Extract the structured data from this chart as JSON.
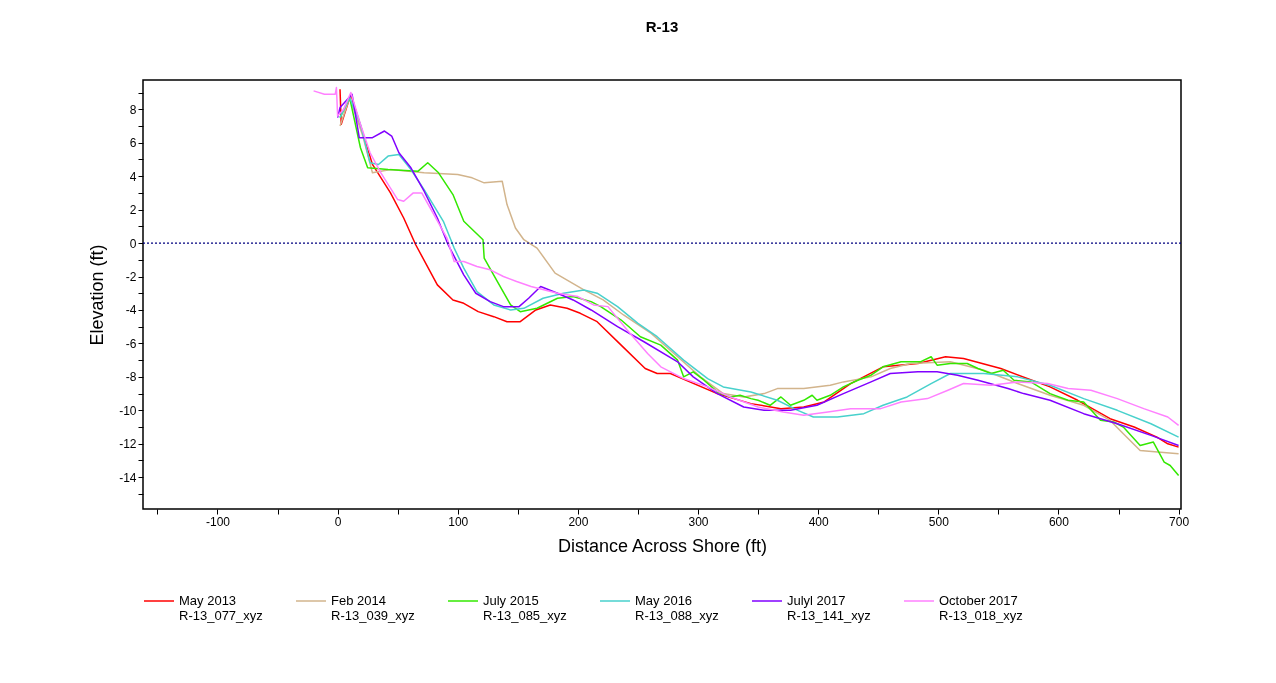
{
  "chart_data": {
    "type": "line",
    "title": "R-13",
    "xlabel": "Distance Across Shore (ft)",
    "ylabel": "Elevation (ft)",
    "xlim": [
      -162,
      702
    ],
    "ylim": [
      -15.9,
      9.75
    ],
    "xticks": [
      {
        "value": -150,
        "label": null
      },
      -100,
      {
        "value": -50,
        "label": null
      },
      0,
      {
        "value": 50,
        "label": null
      },
      100,
      {
        "value": 150,
        "label": null
      },
      200,
      {
        "value": 250,
        "label": null
      },
      300,
      {
        "value": 350,
        "label": null
      },
      400,
      {
        "value": 450,
        "label": null
      },
      500,
      {
        "value": 550,
        "label": null
      },
      600,
      {
        "value": 650,
        "label": null
      },
      700
    ],
    "yticks": [
      {
        "value": -15,
        "label": null
      },
      -14,
      {
        "value": -13,
        "label": null
      },
      -12,
      {
        "value": -11,
        "label": null
      },
      -10,
      {
        "value": -9,
        "label": null
      },
      -8,
      {
        "value": -7,
        "label": null
      },
      -6,
      {
        "value": -5,
        "label": null
      },
      -4,
      {
        "value": -3,
        "label": null
      },
      -2,
      {
        "value": -1,
        "label": null
      },
      0,
      {
        "value": 1,
        "label": null
      },
      2,
      {
        "value": 3,
        "label": null
      },
      4,
      {
        "value": 5,
        "label": null
      },
      6,
      {
        "value": 7,
        "label": null
      },
      8,
      {
        "value": 9,
        "label": null
      }
    ],
    "grid": false,
    "legend": "bottom",
    "marker": "none",
    "line_style": "solid",
    "ref_lines": [
      {
        "axis": "y",
        "value": 0,
        "color": "#000080",
        "line_style": "dotted"
      }
    ],
    "series": [
      {
        "name": "May 2013\nR-13_077_xyz",
        "color": "#ff0000",
        "x": [
          2,
          3,
          11,
          29,
          44,
          55,
          65,
          83,
          96,
          105,
          117,
          130,
          141,
          152,
          165,
          177,
          191,
          202,
          216,
          236,
          256,
          266,
          277,
          316,
          344,
          369,
          388,
          405,
          427,
          454,
          483,
          506,
          521,
          552,
          574,
          593,
          616,
          643,
          663,
          682,
          691,
          700
        ],
        "values": [
          9.2,
          7.1,
          8.9,
          4.7,
          3.0,
          1.5,
          -0.1,
          -2.5,
          -3.4,
          -3.6,
          -4.1,
          -4.4,
          -4.7,
          -4.7,
          -4.0,
          -3.7,
          -3.9,
          -4.2,
          -4.7,
          -6.1,
          -7.5,
          -7.8,
          -7.8,
          -9.0,
          -9.6,
          -9.9,
          -9.8,
          -9.5,
          -8.4,
          -7.4,
          -7.2,
          -6.8,
          -6.9,
          -7.5,
          -8.1,
          -8.6,
          -9.4,
          -10.5,
          -11.0,
          -11.6,
          -12.0,
          -12.2
        ]
      },
      {
        "name": "Feb 2014\nR-13_039_xyz",
        "color": "#d2b48c",
        "x": [
          2,
          10,
          21,
          29,
          44,
          72,
          100,
          112,
          122,
          137,
          141,
          148,
          155,
          166,
          181,
          205,
          221,
          238,
          261,
          283,
          302,
          321,
          338,
          355,
          366,
          388,
          410,
          421,
          444,
          460,
          477,
          510,
          538,
          566,
          593,
          621,
          643,
          654,
          668,
          685,
          700
        ],
        "values": [
          7.0,
          8.7,
          6.4,
          4.2,
          4.4,
          4.2,
          4.1,
          3.9,
          3.6,
          3.7,
          2.3,
          0.9,
          0.2,
          -0.3,
          -1.8,
          -2.8,
          -3.4,
          -4.3,
          -5.4,
          -6.8,
          -8.0,
          -9.0,
          -9.2,
          -9.0,
          -8.7,
          -8.7,
          -8.5,
          -8.3,
          -8.0,
          -7.5,
          -7.2,
          -7.1,
          -7.6,
          -8.4,
          -9.1,
          -9.7,
          -10.6,
          -11.4,
          -12.4,
          -12.5,
          -12.6
        ]
      },
      {
        "name": "July 2015\nR-13_085_xyz",
        "color": "#33e800",
        "x": [
          2,
          10,
          19,
          25,
          42,
          67,
          75,
          84,
          96,
          105,
          121,
          122,
          133,
          144,
          152,
          166,
          183,
          196,
          211,
          219,
          236,
          252,
          269,
          283,
          288,
          296,
          305,
          316,
          327,
          335,
          344,
          350,
          360,
          369,
          377,
          388,
          395,
          399,
          410,
          421,
          433,
          444,
          454,
          469,
          485,
          494,
          499,
          510,
          524,
          533,
          544,
          554,
          563,
          577,
          593,
          608,
          621,
          635,
          646,
          654,
          668,
          679,
          688,
          693,
          700
        ],
        "values": [
          7.5,
          8.7,
          5.7,
          4.5,
          4.4,
          4.3,
          4.8,
          4.2,
          2.9,
          1.3,
          0.2,
          -0.9,
          -2.3,
          -3.7,
          -4.1,
          -3.9,
          -3.3,
          -3.2,
          -3.5,
          -3.8,
          -4.6,
          -5.6,
          -6.1,
          -7.0,
          -8.0,
          -7.7,
          -8.2,
          -8.9,
          -9.2,
          -9.1,
          -9.3,
          -9.4,
          -9.7,
          -9.2,
          -9.7,
          -9.4,
          -9.1,
          -9.4,
          -9.1,
          -8.6,
          -8.2,
          -7.9,
          -7.4,
          -7.1,
          -7.1,
          -6.8,
          -7.3,
          -7.2,
          -7.2,
          -7.5,
          -7.8,
          -7.6,
          -8.2,
          -8.3,
          -9.0,
          -9.4,
          -9.5,
          -10.6,
          -10.7,
          -11.0,
          -12.1,
          -11.9,
          -13.1,
          -13.3,
          -13.9
        ]
      },
      {
        "name": "May 2016\nR-13_088_xyz",
        "color": "#48d1cc",
        "x": [
          2,
          10,
          19,
          27,
          34,
          42,
          51,
          61,
          72,
          88,
          97,
          105,
          116,
          130,
          144,
          155,
          171,
          188,
          205,
          216,
          233,
          250,
          266,
          288,
          308,
          321,
          344,
          366,
          383,
          396,
          416,
          438,
          454,
          474,
          494,
          510,
          538,
          566,
          593,
          621,
          649,
          677,
          700
        ],
        "values": [
          7.5,
          8.7,
          7.1,
          4.8,
          4.7,
          5.2,
          5.3,
          4.4,
          3.2,
          1.3,
          -0.3,
          -1.5,
          -2.9,
          -3.7,
          -4.0,
          -3.9,
          -3.3,
          -3.0,
          -2.8,
          -3.0,
          -3.8,
          -4.8,
          -5.6,
          -7.0,
          -8.1,
          -8.6,
          -8.9,
          -9.4,
          -10.0,
          -10.4,
          -10.4,
          -10.2,
          -9.7,
          -9.2,
          -8.4,
          -7.8,
          -7.8,
          -8.0,
          -8.5,
          -9.3,
          -10.0,
          -10.8,
          -11.6
        ]
      },
      {
        "name": "Julyl 2017\nR-13_141_xyz",
        "color": "#8000ff",
        "x": [
          0,
          2,
          12,
          18,
          29,
          39,
          45,
          51,
          61,
          72,
          83,
          92,
          105,
          115,
          127,
          138,
          151,
          159,
          169,
          183,
          196,
          211,
          233,
          255,
          283,
          296,
          316,
          338,
          355,
          377,
          399,
          421,
          444,
          460,
          483,
          499,
          516,
          533,
          558,
          571,
          593,
          621,
          649,
          677,
          700
        ],
        "values": [
          7.5,
          8.1,
          8.9,
          6.3,
          6.3,
          6.7,
          6.4,
          5.4,
          4.5,
          3.1,
          1.5,
          -0.1,
          -1.9,
          -3.0,
          -3.5,
          -3.8,
          -3.8,
          -3.3,
          -2.6,
          -3.0,
          -3.4,
          -4.0,
          -5.0,
          -5.9,
          -7.1,
          -8.0,
          -9.0,
          -9.8,
          -10.0,
          -10.0,
          -9.7,
          -9.0,
          -8.3,
          -7.8,
          -7.7,
          -7.7,
          -7.9,
          -8.2,
          -8.7,
          -9.0,
          -9.4,
          -10.2,
          -10.8,
          -11.5,
          -12.1
        ]
      },
      {
        "name": "October 2017\nR-13_018_xyz",
        "color": "#ff80ff",
        "x": [
          -20,
          -11,
          -2,
          -1,
          0,
          5,
          11,
          19,
          27,
          36,
          50,
          55,
          63,
          70,
          77,
          91,
          97,
          105,
          116,
          127,
          138,
          149,
          161,
          183,
          200,
          213,
          225,
          241,
          258,
          269,
          288,
          308,
          327,
          350,
          371,
          388,
          408,
          427,
          452,
          469,
          491,
          508,
          521,
          544,
          566,
          591,
          608,
          627,
          649,
          671,
          691,
          700
        ],
        "values": [
          9.1,
          8.9,
          8.9,
          9.3,
          7.6,
          8.0,
          9.0,
          7.1,
          5.4,
          4.2,
          2.6,
          2.5,
          3.0,
          3.0,
          2.1,
          0.3,
          -1.1,
          -1.1,
          -1.4,
          -1.6,
          -2.0,
          -2.3,
          -2.6,
          -3.0,
          -3.2,
          -3.7,
          -3.8,
          -5.2,
          -6.6,
          -7.4,
          -8.1,
          -8.6,
          -9.2,
          -9.8,
          -10.1,
          -10.3,
          -10.1,
          -9.9,
          -9.9,
          -9.5,
          -9.3,
          -8.8,
          -8.4,
          -8.5,
          -8.3,
          -8.4,
          -8.7,
          -8.8,
          -9.3,
          -9.9,
          -10.4,
          -10.9
        ]
      }
    ]
  }
}
